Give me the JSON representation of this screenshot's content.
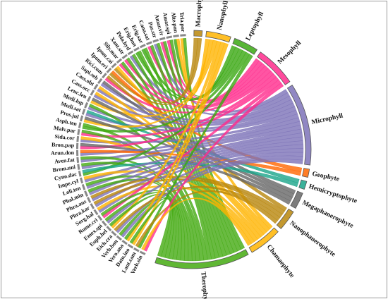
{
  "chart_data": {
    "type": "chord",
    "groups": [
      {
        "name": "Macrophyll",
        "color": "#b8860b"
      },
      {
        "name": "Nanophyll",
        "color": "#ffb400"
      },
      {
        "name": "Leptophyll",
        "color": "#3aa812"
      },
      {
        "name": "Mesophyll",
        "color": "#ff2a8c"
      },
      {
        "name": "Microphyll",
        "color": "#7c72b8"
      },
      {
        "name": "Geophyte",
        "color": "#ff6600"
      },
      {
        "name": "Hemicryptophyte",
        "color": "#1aa58a"
      },
      {
        "name": "Megaphanerophyte",
        "color": "#666666"
      },
      {
        "name": "Nanophanerophyte",
        "color": "#b8860b"
      },
      {
        "name": "Chamaephyte",
        "color": "#ffb400"
      },
      {
        "name": "Therophyte",
        "color": "#44aa11"
      }
    ],
    "species": [
      {
        "name": "Tria.por",
        "leaf": "Nanophyll",
        "life": "Therophyte"
      },
      {
        "name": "Alte.pun",
        "leaf": "Leptophyll",
        "life": "Chamaephyte"
      },
      {
        "name": "Amar.spi",
        "leaf": "Mesophyll",
        "life": "Therophyte"
      },
      {
        "name": "Amar.vir",
        "leaf": "Mesophyll",
        "life": "Therophyte"
      },
      {
        "name": "Pas.str",
        "leaf": "Microphyll",
        "life": "Therophyte"
      },
      {
        "name": "Cana.sat",
        "leaf": "Mesophyll",
        "life": "Therophyte"
      },
      {
        "name": "Erig.sar",
        "leaf": "Leptophyll",
        "life": "Therophyte"
      },
      {
        "name": "Erig.bon",
        "leaf": "Leptophyll",
        "life": "Therophyte"
      },
      {
        "name": "Polo.hyd",
        "leaf": "Microphyll",
        "life": "Therophyte"
      },
      {
        "name": "Xant.str",
        "leaf": "Mesophyll",
        "life": "Therophyte"
      },
      {
        "name": "Sily.mar",
        "leaf": "Mesophyll",
        "life": "Therophyte"
      },
      {
        "name": "Ipom.cai",
        "leaf": "Macrophyll",
        "life": "Chamaephyte"
      },
      {
        "name": "Ipom.eri",
        "leaf": "Macrophyll",
        "life": "Geophyte"
      },
      {
        "name": "Rici.com",
        "leaf": "Mesophyll",
        "life": "Nanophanerophyte"
      },
      {
        "name": "Sapi.seb",
        "leaf": "Microphyll",
        "life": "Megaphanerophyte"
      },
      {
        "name": "Cass.obt",
        "leaf": "Microphyll",
        "life": "Chamaephyte"
      },
      {
        "name": "Cass.occ",
        "leaf": "Microphyll",
        "life": "Chamaephyte"
      },
      {
        "name": "Leuc.leu",
        "leaf": "Nanophyll",
        "life": "Megaphanerophyte"
      },
      {
        "name": "Medi.lup",
        "leaf": "Microphyll",
        "life": "Therophyte"
      },
      {
        "name": "Medi.sat",
        "leaf": "Microphyll",
        "life": "Hemicryptophyte"
      },
      {
        "name": "Pros.jul",
        "leaf": "Nanophyll",
        "life": "Megaphanerophyte"
      },
      {
        "name": "Asph.ten",
        "leaf": "Leptophyll",
        "life": "Therophyte"
      },
      {
        "name": "Malv.par",
        "leaf": "Mesophyll",
        "life": "Therophyte"
      },
      {
        "name": "Sida.cor",
        "leaf": "Microphyll",
        "life": "Chamaephyte"
      },
      {
        "name": "Bron.pap",
        "leaf": "Mesophyll",
        "life": "Megaphanerophyte"
      },
      {
        "name": "Arun.don",
        "leaf": "Microphyll",
        "life": "Geophyte"
      },
      {
        "name": "Aven.fat",
        "leaf": "Microphyll",
        "life": "Therophyte"
      },
      {
        "name": "Brom.uni",
        "leaf": "Microphyll",
        "life": "Therophyte"
      },
      {
        "name": "Cyno.dac",
        "leaf": "Leptophyll",
        "life": "Hemicryptophyte"
      },
      {
        "name": "Impe.cyl",
        "leaf": "Microphyll",
        "life": "Chamaephyte"
      },
      {
        "name": "Loli.ten",
        "leaf": "Microphyll",
        "life": "Therophyte"
      },
      {
        "name": "Phal.min",
        "leaf": "Microphyll",
        "life": "Therophyte"
      },
      {
        "name": "Phra.aus",
        "leaf": "Microphyll",
        "life": "Nanophanerophyte"
      },
      {
        "name": "Phra.kar",
        "leaf": "Microphyll",
        "life": "Nanophanerophyte"
      },
      {
        "name": "Sorg.hal",
        "leaf": "Microphyll",
        "life": "Chamaephyte"
      },
      {
        "name": "Rume.cri",
        "leaf": "Mesophyll",
        "life": "Therophyte"
      },
      {
        "name": "Emex.spi",
        "leaf": "Microphyll",
        "life": "Therophyte"
      },
      {
        "name": "Euph.hel",
        "leaf": "Nanophyll",
        "life": "Therophyte"
      },
      {
        "name": "Eich.cra",
        "leaf": "Microphyll",
        "life": "Nanophanerophyte"
      },
      {
        "name": "Verb.bon",
        "leaf": "Microphyll",
        "life": "Therophyte"
      },
      {
        "name": "Vero.ana",
        "leaf": "Nanophyll",
        "life": "Therophyte"
      },
      {
        "name": "Datu.ino",
        "leaf": "Nanophyll",
        "life": "Therophyte"
      },
      {
        "name": "Lant.cam",
        "leaf": "Leptophyll",
        "life": "Nanophanerophyte"
      },
      {
        "name": "Verb.sin",
        "leaf": "Mesophyll",
        "life": "Chamaephyte"
      }
    ]
  }
}
